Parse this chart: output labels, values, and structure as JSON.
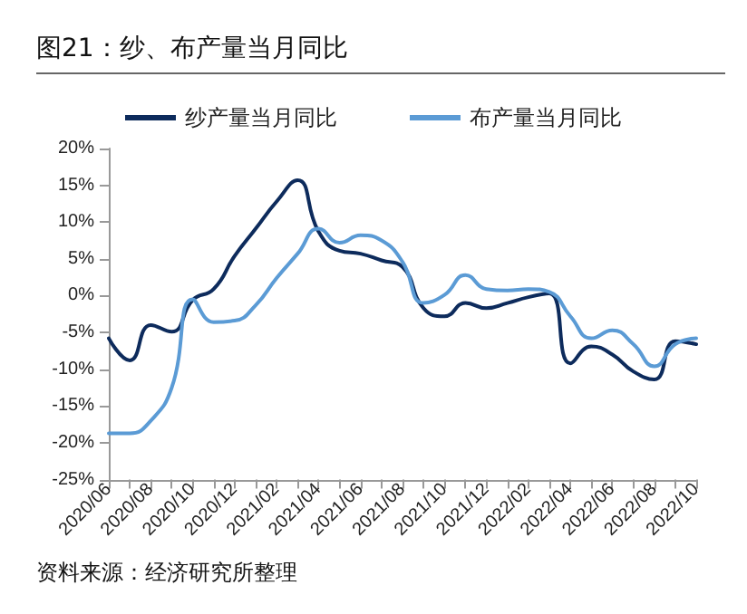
{
  "chart_data": {
    "type": "line",
    "title": "图21：纱、布产量当月同比",
    "categories": [
      "2020/06",
      null,
      "2020/08",
      null,
      "2020/10",
      null,
      "2020/12",
      null,
      "2021/02",
      null,
      "2021/04",
      null,
      "2021/06",
      null,
      "2021/08",
      null,
      "2021/10",
      null,
      "2021/12",
      null,
      "2022/02",
      null,
      "2022/04",
      null,
      "2022/06",
      null,
      "2022/08",
      null,
      "2022/10"
    ],
    "series": [
      {
        "name": "纱产量当月同比",
        "color": "#0d2b5c",
        "values": [
          -5.8,
          -8.8,
          -4,
          -4.9,
          -0.6,
          0.9,
          5.4,
          9.1,
          12.8,
          15.7,
          8.7,
          6.1,
          5.7,
          4.8,
          3.9,
          -1.7,
          -2.8,
          -1,
          -1.7,
          -1,
          -0.2,
          0.3,
          -9.2,
          -6.9,
          -8,
          -10.3,
          -11.4,
          -6.2,
          -6.6
        ]
      },
      {
        "name": "布产量当月同比",
        "color": "#5b9bd5",
        "values": [
          -18.7,
          -18.7,
          -17,
          -12.5,
          -0.5,
          -3.6,
          -3.4,
          -1.3,
          2.4,
          5.7,
          9.1,
          7.2,
          8.2,
          7.5,
          4.6,
          -1,
          0.1,
          2.8,
          0.9,
          0.7,
          0.9,
          0.5,
          -2.8,
          -5.8,
          -4.7,
          -6.6,
          -9.6,
          -6.6,
          -5.8
        ]
      }
    ],
    "ylim": [
      -25,
      20
    ],
    "yticks": [
      {
        "value": -25,
        "label": "-25%"
      },
      {
        "value": -20,
        "label": "-20%"
      },
      {
        "value": -15,
        "label": "-15%"
      },
      {
        "value": -10,
        "label": "-10%"
      },
      {
        "value": -5,
        "label": "-5%"
      },
      {
        "value": 0,
        "label": "0%"
      },
      {
        "value": 5,
        "label": "5%"
      },
      {
        "value": 10,
        "label": "10%"
      },
      {
        "value": 15,
        "label": "15%"
      },
      {
        "value": 20,
        "label": "20%"
      }
    ],
    "grid": false,
    "legend": "top",
    "marker": "none",
    "line_style": "solid",
    "annotations": [
      "资料来源：经济研究所整理"
    ]
  }
}
